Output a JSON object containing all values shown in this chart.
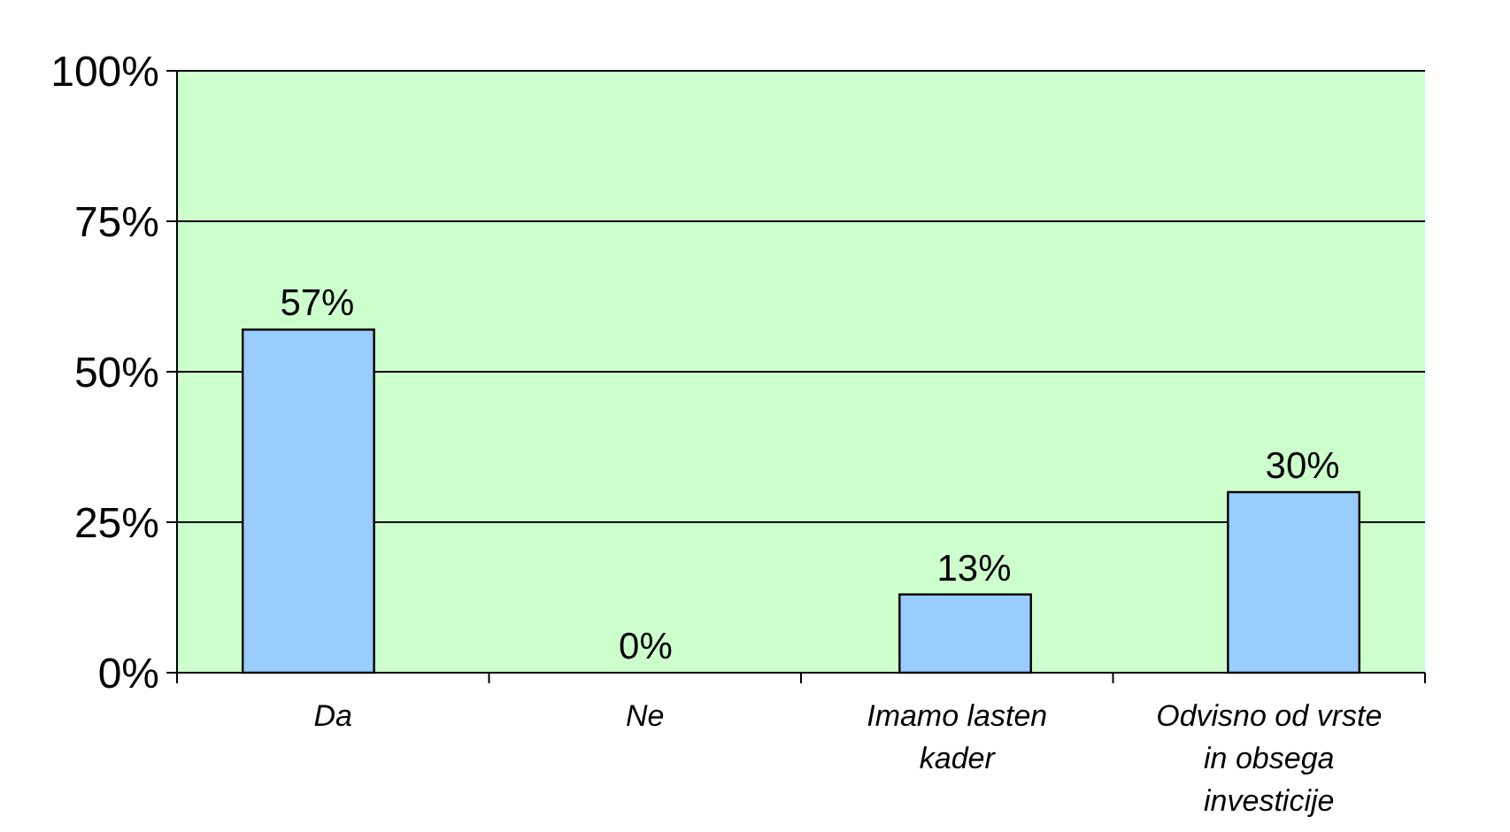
{
  "chart_data": {
    "type": "bar",
    "categories": [
      "Da",
      "Ne",
      "Imamo lasten kader",
      "Odvisno od vrste in obsega investicije"
    ],
    "values": [
      57,
      0,
      13,
      30
    ],
    "color": "#99ccff",
    "value_labels": [
      "57%",
      "0%",
      "13%",
      "30%"
    ],
    "ylim": [
      0,
      100
    ],
    "yticks": [
      {
        "value": 0,
        "label": "0%"
      },
      {
        "value": 25,
        "label": "25%"
      },
      {
        "value": 50,
        "label": "50%"
      },
      {
        "value": 75,
        "label": "75%"
      },
      {
        "value": 100,
        "label": "100%"
      }
    ],
    "grid": "y"
  }
}
